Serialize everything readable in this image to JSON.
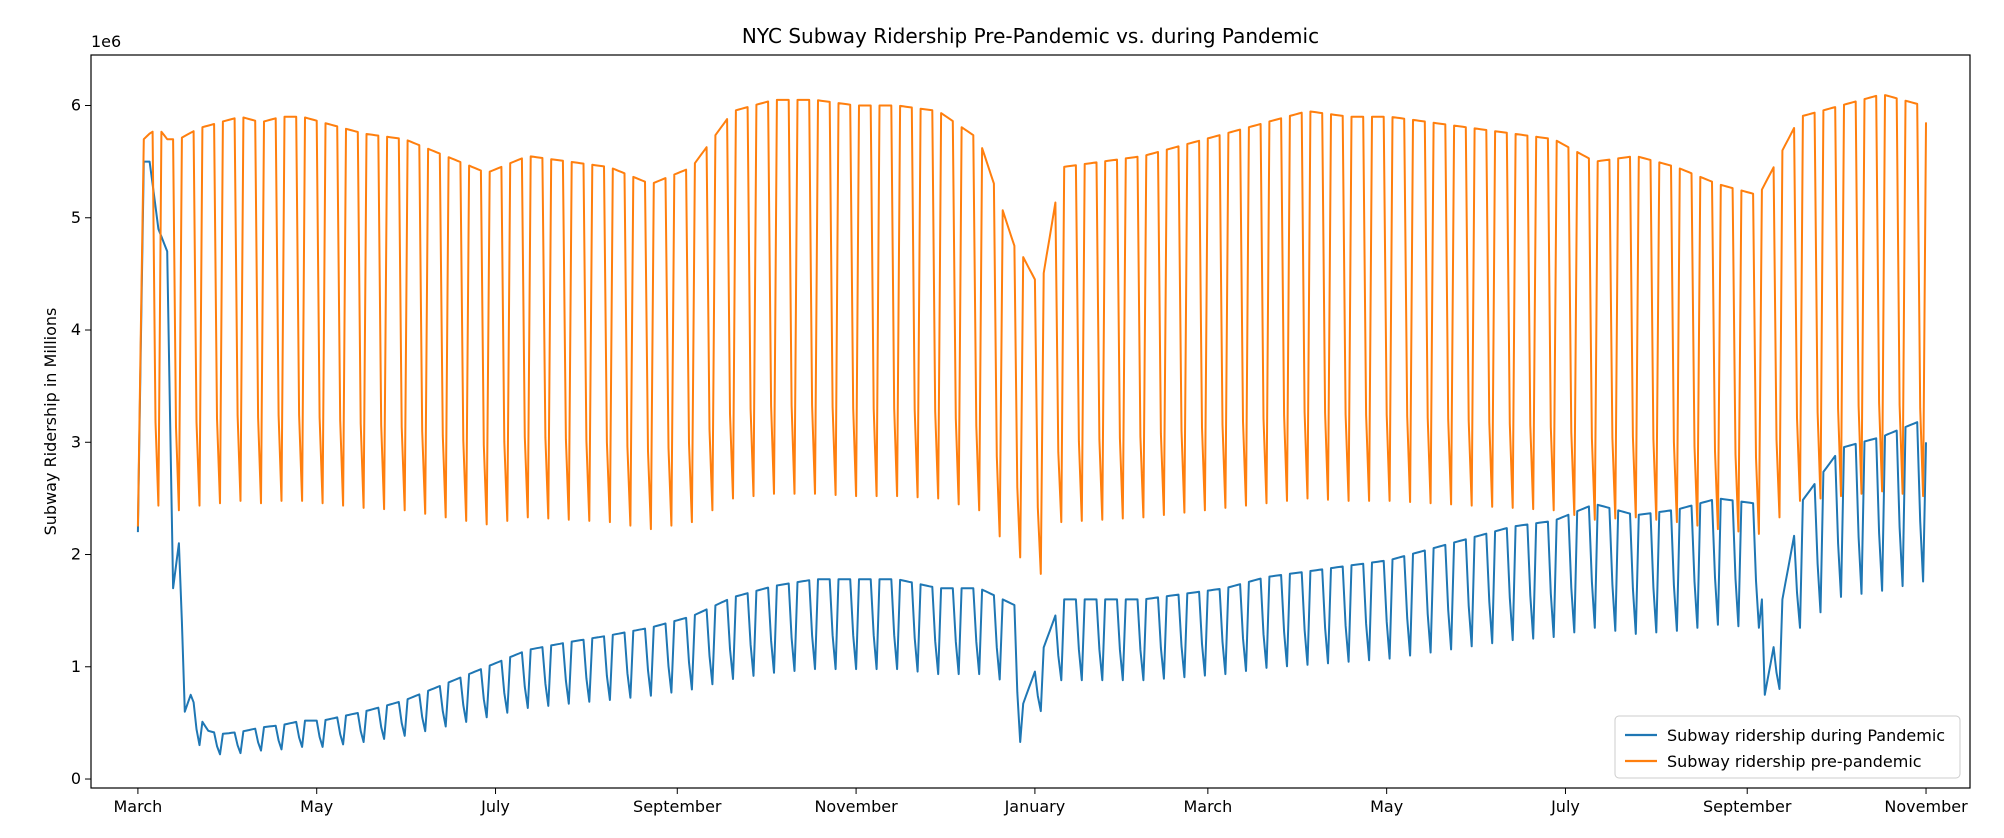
{
  "chart_data": {
    "type": "line",
    "title": "NYC Subway Ridership Pre-Pandemic vs. during Pandemic",
    "xlabel": "",
    "ylabel": "Subway Ridership in Millions",
    "y_offset_label": "1e6",
    "ylim": [
      -80000,
      6450000
    ],
    "yticks": [
      0,
      1000000,
      2000000,
      3000000,
      4000000,
      5000000,
      6000000
    ],
    "ytick_labels": [
      "0",
      "1",
      "2",
      "3",
      "4",
      "5",
      "6"
    ],
    "xlim": [
      "2020-02-14",
      "2021-11-16"
    ],
    "xticks": [
      {
        "date": "2020-03-01",
        "label": "March"
      },
      {
        "date": "2020-05-01",
        "label": "May"
      },
      {
        "date": "2020-07-01",
        "label": "July"
      },
      {
        "date": "2020-09-01",
        "label": "September"
      },
      {
        "date": "2020-11-01",
        "label": "November"
      },
      {
        "date": "2021-01-01",
        "label": "January"
      },
      {
        "date": "2021-03-01",
        "label": "March"
      },
      {
        "date": "2021-05-01",
        "label": "May"
      },
      {
        "date": "2021-07-01",
        "label": "July"
      },
      {
        "date": "2021-09-01",
        "label": "September"
      },
      {
        "date": "2021-11-01",
        "label": "November"
      }
    ],
    "grid": false,
    "legend_position": "lower right",
    "series": [
      {
        "name": "Subway ridership during Pandemic",
        "color": "#1f77b4",
        "x": [
          "2020-03-01",
          "2020-03-03",
          "2020-03-05",
          "2020-03-08",
          "2020-03-11",
          "2020-03-13",
          "2020-03-15",
          "2020-03-16",
          "2020-03-17",
          "2020-03-19",
          "2020-03-22",
          "2020-03-25",
          "2020-03-29",
          "2020-04-05",
          "2020-04-12",
          "2020-04-19",
          "2020-04-26",
          "2020-05-03",
          "2020-05-17",
          "2020-05-31",
          "2020-06-14",
          "2020-06-28",
          "2020-07-12",
          "2020-07-26",
          "2020-08-09",
          "2020-08-23",
          "2020-09-06",
          "2020-09-20",
          "2020-10-04",
          "2020-10-18",
          "2020-11-01",
          "2020-11-15",
          "2020-11-29",
          "2020-12-13",
          "2020-12-25",
          "2020-12-27",
          "2021-01-10",
          "2021-01-24",
          "2021-02-07",
          "2021-02-21",
          "2021-03-07",
          "2021-03-21",
          "2021-04-04",
          "2021-04-18",
          "2021-05-02",
          "2021-05-16",
          "2021-05-30",
          "2021-06-13",
          "2021-06-27",
          "2021-07-11",
          "2021-07-25",
          "2021-08-08",
          "2021-08-22",
          "2021-09-05",
          "2021-09-07",
          "2021-09-19",
          "2021-10-03",
          "2021-10-17",
          "2021-10-31",
          "2021-11-01"
        ],
        "values": [
          2200000,
          5500000,
          5500000,
          4900000,
          4700000,
          1700000,
          2100000,
          1400000,
          600000,
          750000,
          550000,
          430000,
          400000,
          420000,
          460000,
          480000,
          520000,
          520000,
          600000,
          700000,
          850000,
          1000000,
          1150000,
          1220000,
          1280000,
          1350000,
          1450000,
          1620000,
          1720000,
          1780000,
          1780000,
          1780000,
          1700000,
          1700000,
          1550000,
          600000,
          1600000,
          1600000,
          1600000,
          1650000,
          1700000,
          1800000,
          1850000,
          1900000,
          1950000,
          2050000,
          2150000,
          2250000,
          2300000,
          2450000,
          2350000,
          2400000,
          2500000,
          2450000,
          750000,
          2450000,
          2950000,
          3050000,
          3200000,
          3000000
        ]
      },
      {
        "name": "Subway ridership pre-pandemic",
        "color": "#ff7f0e",
        "x": [
          "2020-03-01",
          "2020-03-03",
          "2020-03-05",
          "2020-03-08",
          "2020-03-11",
          "2020-03-15",
          "2020-03-22",
          "2020-03-29",
          "2020-04-05",
          "2020-04-12",
          "2020-04-19",
          "2020-04-26",
          "2020-05-03",
          "2020-05-17",
          "2020-05-31",
          "2020-06-14",
          "2020-06-28",
          "2020-07-12",
          "2020-07-26",
          "2020-08-09",
          "2020-08-23",
          "2020-09-06",
          "2020-09-20",
          "2020-10-04",
          "2020-10-18",
          "2020-11-01",
          "2020-11-15",
          "2020-11-29",
          "2020-12-13",
          "2020-12-25",
          "2020-12-27",
          "2021-01-03",
          "2021-01-10",
          "2021-01-24",
          "2021-02-07",
          "2021-02-21",
          "2021-03-07",
          "2021-03-21",
          "2021-04-04",
          "2021-04-18",
          "2021-05-02",
          "2021-05-16",
          "2021-05-30",
          "2021-06-13",
          "2021-06-27",
          "2021-07-11",
          "2021-07-25",
          "2021-08-08",
          "2021-08-22",
          "2021-09-05",
          "2021-09-19",
          "2021-10-03",
          "2021-10-17",
          "2021-10-31",
          "2021-11-01"
        ],
        "values": [
          2250000,
          5700000,
          5750000,
          5800000,
          5700000,
          5700000,
          5800000,
          5850000,
          5900000,
          5850000,
          5900000,
          5900000,
          5850000,
          5750000,
          5700000,
          5550000,
          5400000,
          5550000,
          5500000,
          5450000,
          5300000,
          5450000,
          5950000,
          6050000,
          6050000,
          6000000,
          6000000,
          5950000,
          5700000,
          4750000,
          4700000,
          4350000,
          5450000,
          5500000,
          5550000,
          5650000,
          5750000,
          5850000,
          5950000,
          5900000,
          5900000,
          5850000,
          5800000,
          5750000,
          5700000,
          5500000,
          5550000,
          5450000,
          5300000,
          5200000,
          5900000,
          6000000,
          6100000,
          6000000,
          5850000
        ]
      }
    ]
  }
}
